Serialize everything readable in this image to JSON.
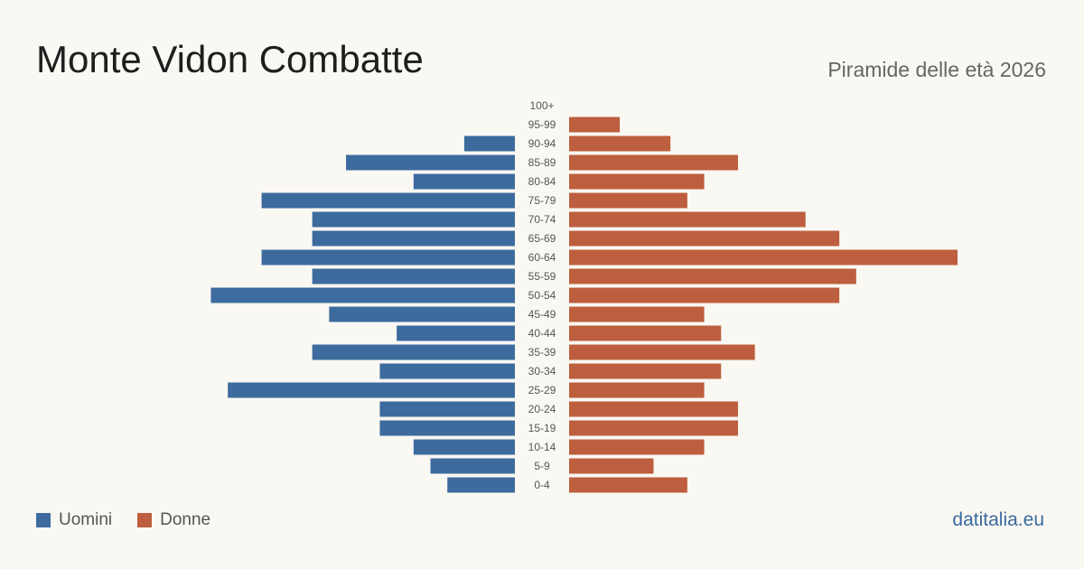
{
  "header": {
    "title": "Monte Vidon Combatte",
    "subtitle": "Piramide delle età 2026"
  },
  "legend": {
    "male_label": "Uomini",
    "female_label": "Donne"
  },
  "footer": {
    "brand": "datitalia.eu"
  },
  "colors": {
    "male": "#3d6b9e",
    "female": "#bd5f3e",
    "background": "#faf8f3"
  },
  "chart_data": {
    "type": "bar",
    "orientation": "horizontal-pyramid",
    "title": "Monte Vidon Combatte",
    "subtitle": "Piramide delle età 2026",
    "categories": [
      "100+",
      "95-99",
      "90-94",
      "85-89",
      "80-84",
      "75-79",
      "70-74",
      "65-69",
      "60-64",
      "55-59",
      "50-54",
      "45-49",
      "40-44",
      "35-39",
      "30-34",
      "25-29",
      "20-24",
      "15-19",
      "10-14",
      "5-9",
      "0-4"
    ],
    "series": [
      {
        "name": "Uomini",
        "values": [
          0,
          0,
          3,
          10,
          6,
          15,
          12,
          12,
          15,
          12,
          18,
          11,
          7,
          12,
          8,
          17,
          8,
          8,
          6,
          5,
          4
        ]
      },
      {
        "name": "Donne",
        "values": [
          0,
          3,
          6,
          10,
          8,
          7,
          14,
          16,
          23,
          17,
          16,
          8,
          9,
          11,
          9,
          8,
          10,
          10,
          8,
          5,
          7
        ]
      }
    ],
    "xlim": [
      0,
      23
    ],
    "grid": false,
    "legend_position": "bottom-left"
  }
}
